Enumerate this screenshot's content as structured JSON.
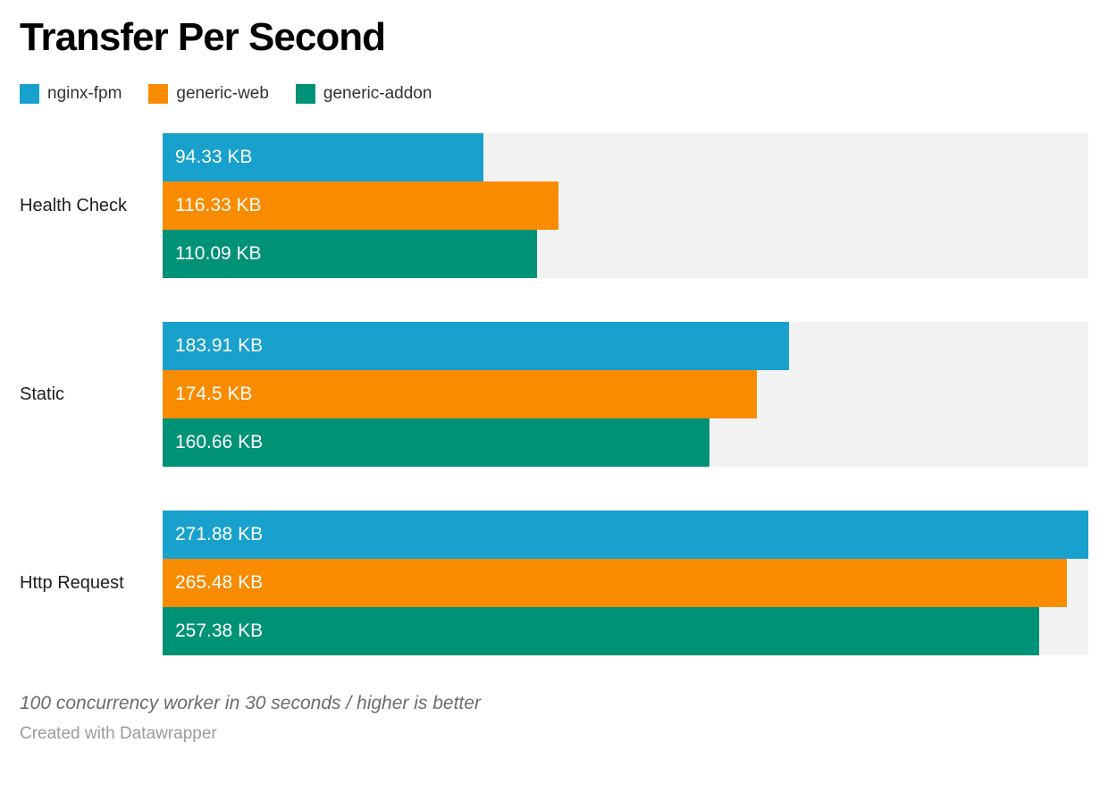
{
  "title": "Transfer Per Second",
  "footer": {
    "note": "100 concurrency worker in 30 seconds / higher is better",
    "attribution": "Created with Datawrapper"
  },
  "colors": {
    "track": "#f2f2f2",
    "nginx_fpm": "#18a1cd",
    "generic_web": "#f98b00",
    "generic_addon": "#009276"
  },
  "chart_data": {
    "type": "bar",
    "orientation": "horizontal",
    "title": "Transfer Per Second",
    "unit": "KB",
    "xlim": [
      0,
      271.88
    ],
    "xmax": 271.88,
    "grid": false,
    "legend_position": "top",
    "categories": [
      "Health Check",
      "Static",
      "Http Request"
    ],
    "series": [
      {
        "name": "nginx-fpm",
        "color": "#18a1cd",
        "values": [
          94.33,
          183.91,
          271.88
        ],
        "labels": [
          "94.33 KB",
          "183.91 KB",
          "271.88 KB"
        ]
      },
      {
        "name": "generic-web",
        "color": "#f98b00",
        "values": [
          116.33,
          174.5,
          265.48
        ],
        "labels": [
          "116.33 KB",
          "174.5 KB",
          "265.48 KB"
        ]
      },
      {
        "name": "generic-addon",
        "color": "#009276",
        "values": [
          110.09,
          160.66,
          257.38
        ],
        "labels": [
          "110.09 KB",
          "160.66 KB",
          "257.38 KB"
        ]
      }
    ]
  }
}
